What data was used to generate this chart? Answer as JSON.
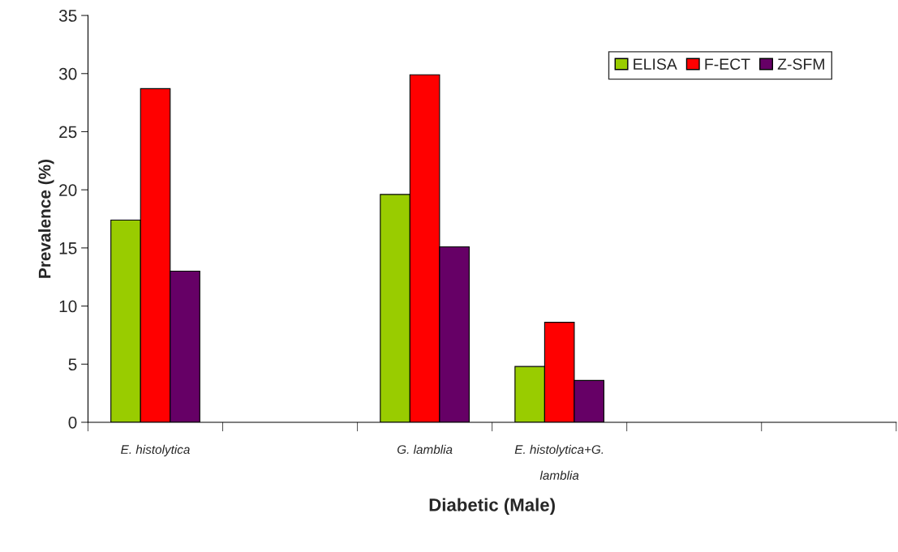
{
  "chart_data": {
    "type": "bar",
    "xlabel": "Diabetic (Male)",
    "ylabel": "Prevalence (%)",
    "categories": [
      "E. histolytica",
      null,
      "G. lamblia",
      "E. histolytica+G.\nlamblia",
      null,
      null
    ],
    "series": [
      {
        "name": "ELISA",
        "color": "#99cc00",
        "values": [
          17.4,
          null,
          19.6,
          4.8,
          null,
          null
        ]
      },
      {
        "name": "F-ECT",
        "color": "#ff0000",
        "values": [
          28.7,
          null,
          29.9,
          8.6,
          null,
          null
        ]
      },
      {
        "name": "Z-SFM",
        "color": "#660066",
        "values": [
          13.0,
          null,
          15.1,
          3.6,
          null,
          null
        ]
      }
    ],
    "ylim": [
      0,
      35
    ],
    "yticks": [
      0,
      5,
      10,
      15,
      20,
      25,
      30,
      35
    ],
    "grid": false,
    "legend": "top right"
  }
}
